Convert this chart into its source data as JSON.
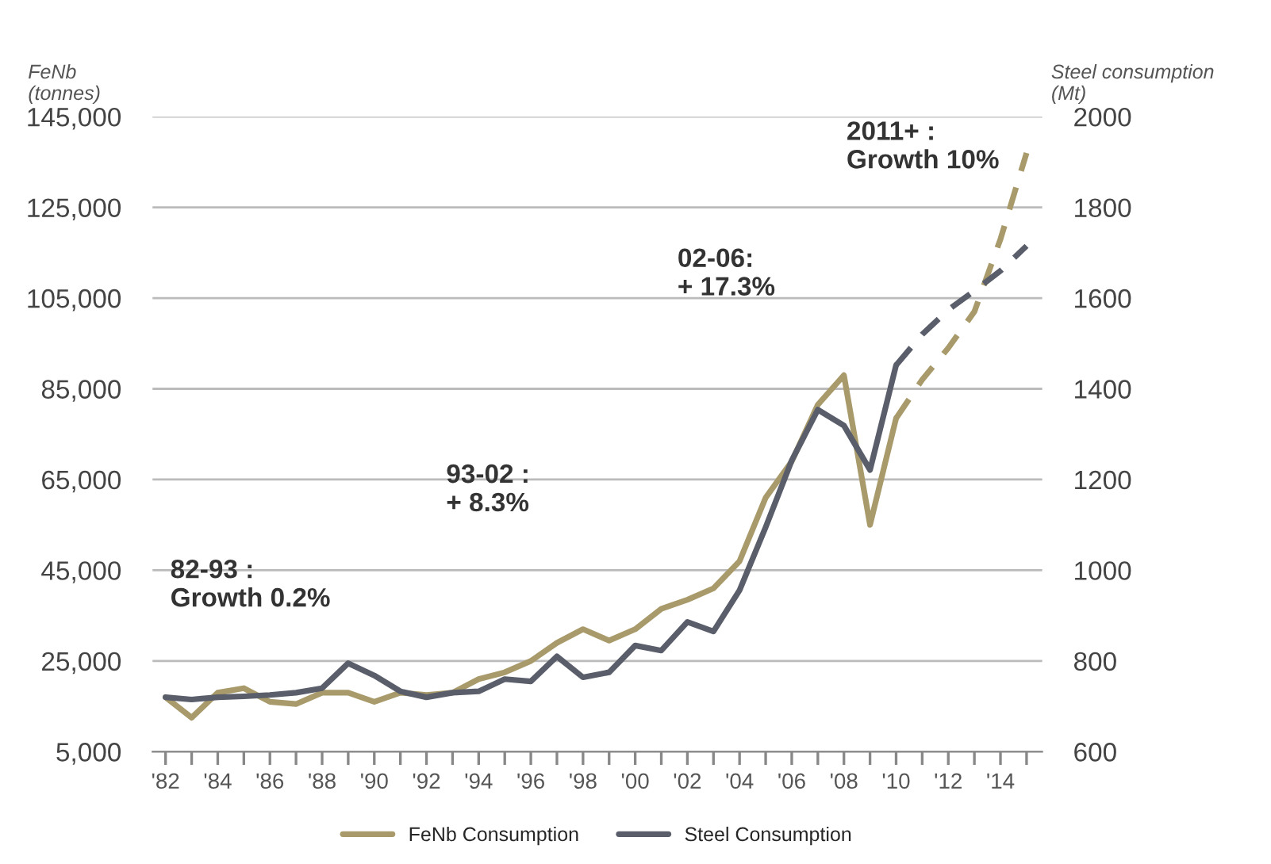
{
  "chart_data": {
    "type": "line",
    "ylabel": "FeNb\n(tonnes)",
    "y2label": "Steel consumption\n(Mt)",
    "annotations": [
      "82-93 :\nGrowth 0.2%",
      "93-02 :\n+ 8.3%",
      "02-06:\n+ 17.3%",
      "2011+ :\nGrowth 10%"
    ],
    "series": [
      {
        "name": "FeNb Consumption",
        "color": "#a89a6a",
        "x": [
          1982,
          1983,
          1984,
          1985,
          1986,
          1987,
          1988,
          1989,
          1990,
          1991,
          1992,
          1993,
          1994,
          1995,
          1996,
          1997,
          1998,
          1999,
          2000,
          2001,
          2002,
          2003,
          2004,
          2005,
          2006,
          2007,
          2008,
          2009,
          2010
        ],
        "values": [
          17000,
          12500,
          18000,
          19000,
          16000,
          15500,
          18000,
          18000,
          16000,
          18000,
          17500,
          18000,
          21000,
          22500,
          25000,
          29000,
          32000,
          29500,
          32000,
          36500,
          38500,
          41000,
          47000,
          61000,
          69000,
          81500,
          88000,
          55000,
          78500
        ]
      },
      {
        "name": "Steel Consumption",
        "color": "#5a5e6b",
        "axis": "y2",
        "x": [
          1982,
          1983,
          1984,
          1985,
          1986,
          1987,
          1988,
          1989,
          1990,
          1991,
          1992,
          1993,
          1994,
          1995,
          1996,
          1997,
          1998,
          1999,
          2000,
          2001,
          2002,
          2003,
          2004,
          2005,
          2006,
          2007,
          2008,
          2009,
          2010
        ],
        "values": [
          720,
          715,
          720,
          722,
          725,
          730,
          740,
          795,
          768,
          733,
          720,
          730,
          733,
          760,
          755,
          810,
          764,
          775,
          834,
          823,
          886,
          865,
          956,
          1095,
          1242,
          1354,
          1319,
          1221,
          1452
        ]
      },
      {
        "color": "#a89a6a",
        "line_style": "dashed",
        "x": [
          2010,
          2011,
          2012,
          2013,
          2014,
          2015
        ],
        "values": [
          78500,
          87000,
          94000,
          102000,
          118000,
          137000
        ]
      },
      {
        "color": "#5a5e6b",
        "line_style": "dashed",
        "axis": "y2",
        "x": [
          2010,
          2011,
          2012,
          2013,
          2014,
          2015
        ],
        "values": [
          1452,
          1520,
          1574,
          1616,
          1660,
          1715
        ]
      }
    ],
    "xlim": [
      1981.5,
      2015.6
    ],
    "xticks": [
      {
        "value": 1982,
        "label": "'82"
      },
      {
        "value": 1983,
        "label": null
      },
      {
        "value": 1984,
        "label": "'84"
      },
      {
        "value": 1985,
        "label": null
      },
      {
        "value": 1986,
        "label": "'86"
      },
      {
        "value": 1987,
        "label": null
      },
      {
        "value": 1988,
        "label": "'88"
      },
      {
        "value": 1989,
        "label": null
      },
      {
        "value": 1990,
        "label": "'90"
      },
      {
        "value": 1991,
        "label": null
      },
      {
        "value": 1992,
        "label": "'92"
      },
      {
        "value": 1993,
        "label": null
      },
      {
        "value": 1994,
        "label": "'94"
      },
      {
        "value": 1995,
        "label": null
      },
      {
        "value": 1996,
        "label": "'96"
      },
      {
        "value": 1997,
        "label": null
      },
      {
        "value": 1998,
        "label": "'98"
      },
      {
        "value": 1999,
        "label": null
      },
      {
        "value": 2000,
        "label": "'00"
      },
      {
        "value": 2001,
        "label": null
      },
      {
        "value": 2002,
        "label": "'02"
      },
      {
        "value": 2003,
        "label": null
      },
      {
        "value": 2004,
        "label": "'04"
      },
      {
        "value": 2005,
        "label": null
      },
      {
        "value": 2006,
        "label": "'06"
      },
      {
        "value": 2007,
        "label": null
      },
      {
        "value": 2008,
        "label": "'08"
      },
      {
        "value": 2009,
        "label": null
      },
      {
        "value": 2010,
        "label": "'10"
      },
      {
        "value": 2011,
        "label": null
      },
      {
        "value": 2012,
        "label": "'12"
      },
      {
        "value": 2013,
        "label": null
      },
      {
        "value": 2014,
        "label": "'14"
      },
      {
        "value": 2015,
        "label": null
      }
    ],
    "ylim": [
      5000,
      145000
    ],
    "yticks": [
      {
        "value": 5000,
        "label": "5,000"
      },
      {
        "value": 25000,
        "label": "25,000"
      },
      {
        "value": 45000,
        "label": "45,000"
      },
      {
        "value": 65000,
        "label": "65,000"
      },
      {
        "value": 85000,
        "label": "85,000"
      },
      {
        "value": 105000,
        "label": "105,000"
      },
      {
        "value": 125000,
        "label": "125,000"
      },
      {
        "value": 145000,
        "label": "145,000"
      }
    ],
    "y2lim": [
      600,
      2000
    ],
    "y2ticks": [
      600,
      800,
      1000,
      1200,
      1400,
      1600,
      1800,
      2000
    ],
    "grid": "y",
    "legend": "bottom",
    "marker": "none"
  }
}
